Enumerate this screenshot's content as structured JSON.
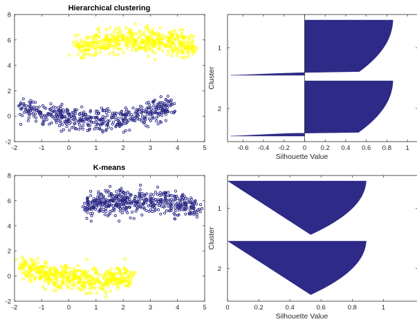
{
  "colors": {
    "yellow": "#ffff00",
    "navy": "#2e2a87",
    "axis": "#262626"
  },
  "chart_data": [
    {
      "type": "scatter",
      "title": "Hierarchical clustering",
      "xlim": [
        -2,
        5
      ],
      "ylim": [
        -2,
        8
      ],
      "xticks": [
        "-2",
        "-1",
        "0",
        "1",
        "2",
        "3",
        "4",
        "5"
      ],
      "yticks": [
        "-2",
        "0",
        "2",
        "4",
        "6",
        "8"
      ],
      "series": [
        {
          "color": "#ffff00",
          "shape": "upper-arc",
          "arc_center": [
            2.5,
            2.0
          ],
          "arc_radius": 4.0,
          "x_range": [
            0.3,
            4.6
          ],
          "count": 500,
          "noise": 0.45
        },
        {
          "color": "#2e2a87",
          "shape": "lower-arc",
          "arc_center": [
            1.0,
            3.7
          ],
          "arc_radius": 4.0,
          "x_range": [
            -1.8,
            3.8
          ],
          "count": 500,
          "noise": 0.45
        }
      ]
    },
    {
      "type": "bar",
      "orientation": "horizontal",
      "xlabel": "Silhouette Value",
      "ylabel": "Cluster",
      "xlim": [
        -0.75,
        1.1
      ],
      "xticks": [
        "-0.6",
        "-0.4",
        "-0.2",
        "0",
        "0.2",
        "0.4",
        "0.6",
        "0.8",
        "1"
      ],
      "clusters": [
        {
          "label": "1",
          "count": 500,
          "neg_count": 25,
          "min": -0.72,
          "max": 0.86
        },
        {
          "label": "2",
          "count": 500,
          "neg_count": 30,
          "min": -0.72,
          "max": 0.86
        }
      ]
    },
    {
      "type": "scatter",
      "title": "K-means",
      "xlim": [
        -2,
        5
      ],
      "ylim": [
        -2,
        8
      ],
      "xticks": [
        "-2",
        "-1",
        "0",
        "1",
        "2",
        "3",
        "4",
        "5"
      ],
      "yticks": [
        "-2",
        "0",
        "2",
        "4",
        "6",
        "8"
      ],
      "series": [
        {
          "color": "#2e2a87",
          "shape": "upper-arc",
          "arc_center": [
            2.5,
            2.0
          ],
          "arc_radius": 4.0,
          "x_range": [
            0.6,
            4.8
          ],
          "count": 500,
          "noise": 0.45
        },
        {
          "color": "#ffff00",
          "shape": "lower-arc",
          "arc_center": [
            1.0,
            3.7
          ],
          "arc_radius": 4.0,
          "x_range": [
            -1.8,
            2.3
          ],
          "count": 500,
          "noise": 0.45
        }
      ]
    },
    {
      "type": "bar",
      "orientation": "horizontal",
      "xlabel": "Silhouette Value",
      "ylabel": "Cluster",
      "xlim": [
        0,
        1.22
      ],
      "xticks": [
        "0",
        "0.2",
        "0.4",
        "0.6",
        "0.8",
        "1"
      ],
      "clusters": [
        {
          "label": "1",
          "count": 500,
          "neg_count": 0,
          "min": 0.0,
          "max": 0.89
        },
        {
          "label": "2",
          "count": 500,
          "neg_count": 0,
          "min": 0.0,
          "max": 0.89
        }
      ]
    }
  ]
}
